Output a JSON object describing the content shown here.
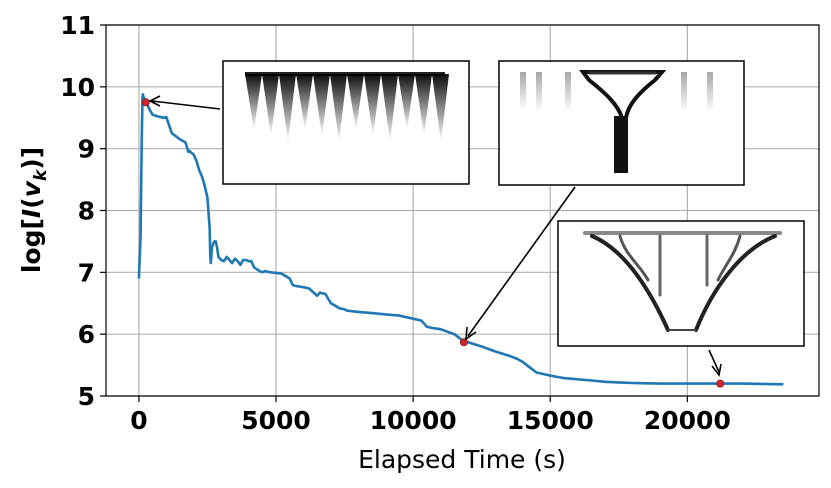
{
  "chart_data": {
    "type": "line",
    "title": "",
    "xlabel": "Elapsed Time (s)",
    "ylabel_parts": [
      "log[",
      "I",
      "(",
      "v",
      "k",
      ")]"
    ],
    "xlim": [
      -1200,
      24800
    ],
    "ylim": [
      5,
      11
    ],
    "xticks": [
      0,
      5000,
      10000,
      15000,
      20000
    ],
    "yticks": [
      5,
      6,
      7,
      8,
      9,
      10,
      11
    ],
    "grid": true,
    "line_color": "#1f77b4",
    "marker_color": "#d62728",
    "series": [
      {
        "x": [
          0,
          60,
          100,
          130,
          150,
          170,
          190,
          210,
          240,
          300,
          400,
          500,
          700,
          900,
          1000,
          1200,
          1500,
          1700,
          1800,
          1850,
          2000,
          2100,
          2200,
          2300,
          2400,
          2500,
          2550,
          2580,
          2600,
          2620,
          2640,
          2660,
          2700,
          2750,
          2800,
          2850,
          2900,
          3000,
          3100,
          3200,
          3300,
          3400,
          3500,
          3600,
          3700,
          3800,
          3900,
          4000,
          4100,
          4200,
          4300,
          4400,
          4500,
          4600,
          4800,
          5200,
          5500,
          5600,
          5700,
          6000,
          6200,
          6300,
          6500,
          6600,
          6800,
          7000,
          7200,
          7300,
          7500,
          7600,
          8000,
          8500,
          9000,
          9500,
          10000,
          10300,
          10500,
          10700,
          11000,
          11500,
          11800,
          12000,
          12500,
          13000,
          13500,
          13800,
          14000,
          14200,
          14500,
          15000,
          15500,
          16000,
          16500,
          17000,
          17500,
          18000,
          19000,
          20000,
          21000,
          22000,
          23500
        ],
        "y": [
          6.9,
          7.6,
          9.1,
          9.85,
          9.88,
          9.8,
          9.82,
          9.74,
          9.78,
          9.72,
          9.62,
          9.55,
          9.52,
          9.5,
          9.51,
          9.25,
          9.15,
          9.1,
          8.95,
          8.96,
          8.9,
          8.8,
          8.65,
          8.55,
          8.4,
          8.2,
          7.9,
          7.7,
          7.3,
          7.15,
          7.25,
          7.4,
          7.45,
          7.5,
          7.5,
          7.4,
          7.25,
          7.2,
          7.18,
          7.25,
          7.2,
          7.15,
          7.22,
          7.18,
          7.12,
          7.2,
          7.2,
          7.18,
          7.18,
          7.08,
          7.05,
          7.02,
          7.0,
          7.02,
          7.0,
          6.98,
          6.9,
          6.8,
          6.78,
          6.76,
          6.74,
          6.7,
          6.62,
          6.67,
          6.65,
          6.5,
          6.45,
          6.42,
          6.4,
          6.38,
          6.36,
          6.34,
          6.32,
          6.3,
          6.25,
          6.22,
          6.12,
          6.1,
          6.08,
          6.0,
          5.9,
          5.87,
          5.8,
          5.72,
          5.65,
          5.6,
          5.55,
          5.48,
          5.38,
          5.33,
          5.29,
          5.27,
          5.25,
          5.23,
          5.22,
          5.21,
          5.2,
          5.2,
          5.2,
          5.2,
          5.19
        ]
      }
    ],
    "highlight_points": [
      {
        "x": 250,
        "y": 9.75
      },
      {
        "x": 11850,
        "y": 5.87
      },
      {
        "x": 21200,
        "y": 5.2
      }
    ]
  }
}
